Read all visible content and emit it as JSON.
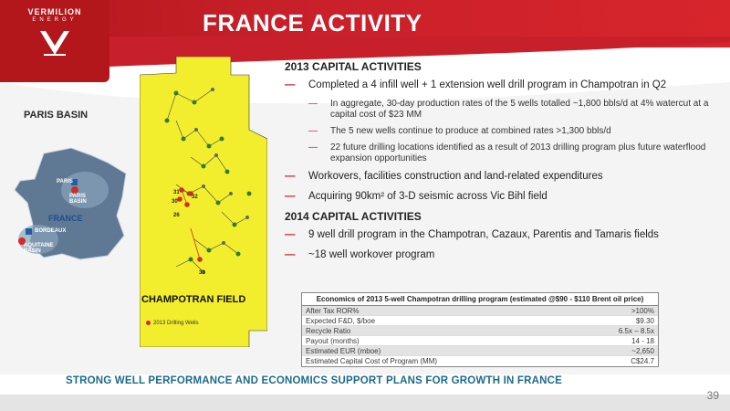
{
  "header": {
    "logo_word": "VERMILION",
    "logo_sub": "ENERGY",
    "title": "FRANCE ACTIVITY"
  },
  "left": {
    "paris_basin": "PARIS BASIN",
    "map_labels": {
      "paris": "PARIS",
      "paris_basin": "PARIS BASIN",
      "france": "FRANCE",
      "bordeaux": "BORDEAUX",
      "aquitaine_basin": "AQUITAINE BASIN"
    }
  },
  "field": {
    "title": "CHAMPOTRAN FIELD",
    "legend": "2013 Drilling Wells",
    "wells": [
      "31",
      "32",
      "30",
      "26",
      "33"
    ]
  },
  "sections": [
    {
      "head": "2013 CAPITAL ACTIVITIES",
      "items": [
        {
          "level": 1,
          "text": "Completed a 4 infill well + 1 extension well drill program in Champotran in Q2"
        },
        {
          "level": 2,
          "text": "In aggregate, 30-day production rates of the 5 wells totalled ~1,800 bbls/d at 4% watercut at a capital cost of $23 MM"
        },
        {
          "level": 2,
          "text": "The 5 new wells continue to produce at combined rates >1,300 bbls/d"
        },
        {
          "level": 2,
          "text": "22 future drilling locations identified as a result of 2013 drilling program plus future waterflood expansion opportunities"
        },
        {
          "level": 1,
          "text": "Workovers, facilities construction and land-related expenditures"
        },
        {
          "level": 1,
          "text": "Acquiring 90km² of 3-D seismic across Vic Bihl field"
        }
      ]
    },
    {
      "head": "2014 CAPITAL ACTIVITIES",
      "items": [
        {
          "level": 1,
          "text": "9 well drill program in the Champotran, Cazaux, Parentis and Tamaris fields"
        },
        {
          "level": 1,
          "text": "~18 well workover program"
        }
      ]
    }
  ],
  "economics": {
    "header": "Economics of 2013 5-well Champotran drilling program (estimated @$90 - $110 Brent oil price)",
    "rows": [
      {
        "label": "After Tax ROR%",
        "value": ">100%"
      },
      {
        "label": "Expected F&D, $/boe",
        "value": "$9.30"
      },
      {
        "label": "Recycle Ratio",
        "value": "6.5x – 8.5x"
      },
      {
        "label": "Payout (months)",
        "value": "14 - 18"
      },
      {
        "label": "Estimated EUR (mboe)",
        "value": "~2,650"
      },
      {
        "label": "Estimated Capital Cost of Program (MM)",
        "value": "C$24.7"
      }
    ]
  },
  "banner": "STRONG WELL PERFORMANCE AND ECONOMICS SUPPORT PLANS FOR GROWTH IN FRANCE",
  "page_number": "39",
  "colors": {
    "brand_red": "#c8202a",
    "banner_blue": "#1b6b8a",
    "field_yellow": "#f2ee2e"
  }
}
